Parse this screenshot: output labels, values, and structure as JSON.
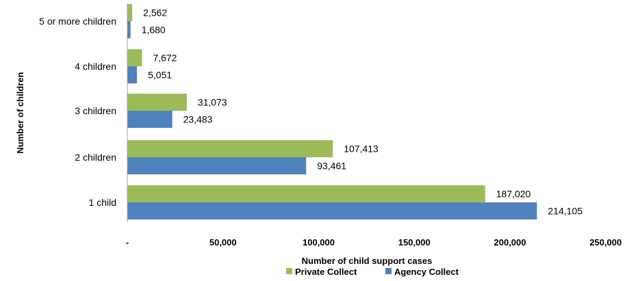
{
  "chart_data": {
    "type": "bar",
    "orientation": "horizontal",
    "categories": [
      "1 child",
      "2 children",
      "3 children",
      "4 children",
      "5 or more children"
    ],
    "series": [
      {
        "name": "Private Collect",
        "color": "#9bbb59",
        "values": [
          187020,
          107413,
          31073,
          7672,
          2562
        ]
      },
      {
        "name": "Agency Collect",
        "color": "#4f81bd",
        "values": [
          214105,
          93461,
          23483,
          5051,
          1680
        ]
      }
    ],
    "data_labels": {
      "Private Collect": [
        "187,020",
        "107,413",
        "31,073",
        "7,672",
        "2,562"
      ],
      "Agency Collect": [
        "214,105",
        "93,461",
        "23,483",
        "5,051",
        "1,680"
      ]
    },
    "x_ticks": [
      0,
      50000,
      100000,
      150000,
      200000,
      250000
    ],
    "x_tick_labels": [
      "-",
      "50,000",
      "100,000",
      "150,000",
      "200,000",
      "250,000"
    ],
    "xlim": [
      0,
      250000
    ],
    "xlabel": "Number of child support cases",
    "ylabel": "Number of children",
    "legend_position": "bottom",
    "grid": false
  }
}
